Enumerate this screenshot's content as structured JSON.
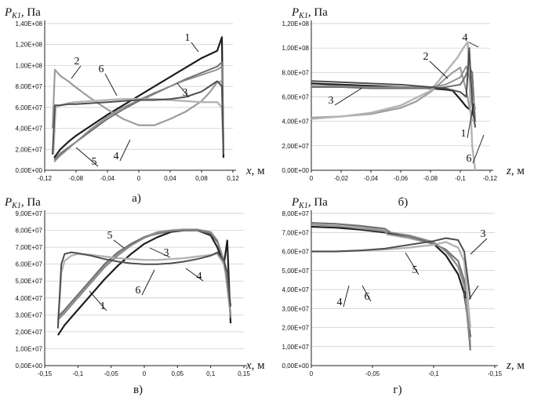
{
  "figure": {
    "ylabel_symbol": "P",
    "ylabel_sub": "K1",
    "ylabel_unit": ", Па",
    "xunit": ", м"
  },
  "colors": {
    "1": "#1e1e1e",
    "2": "#9c9c9c",
    "3": "#707070",
    "4": "#b4b4b4",
    "5": "#8a8a8a",
    "6": "#4e4e4e"
  },
  "chart_data": [
    {
      "type": "line",
      "panel_label": "а)",
      "xaxis_letter": "x",
      "xlim": [
        -0.12,
        0.12
      ],
      "ylim": [
        0,
        140000000
      ],
      "xticks": [
        -0.12,
        -0.08,
        -0.04,
        0,
        0.04,
        0.08,
        0.12
      ],
      "xtick_labels": [
        "-0,12",
        "-0,08",
        "-0,04",
        "0",
        "0,04",
        "0,08",
        "0,12"
      ],
      "yticks": [
        0,
        20000000,
        40000000,
        60000000,
        80000000,
        100000000,
        120000000,
        140000000
      ],
      "ytick_labels": [
        "0,00E+00",
        "2,00E+07",
        "4,00E+07",
        "6,00E+07",
        "8,00E+07",
        "1,00E+08",
        "1,20E+08",
        "1,40E+08"
      ],
      "series": [
        {
          "name": "1",
          "x": [
            -0.108,
            -0.1,
            -0.09,
            -0.08,
            -0.06,
            -0.04,
            -0.02,
            0,
            0.02,
            0.04,
            0.06,
            0.08,
            0.1,
            0.106,
            0.108
          ],
          "y": [
            12000000,
            20000000,
            27000000,
            33000000,
            43000000,
            53000000,
            62000000,
            71000000,
            80000000,
            89000000,
            98000000,
            107000000,
            114000000,
            127000000,
            12000000
          ]
        },
        {
          "name": "2",
          "x": [
            -0.11,
            -0.107,
            -0.1,
            -0.09,
            -0.08,
            -0.06,
            -0.04,
            -0.02,
            0,
            0.02,
            0.04,
            0.06,
            0.08,
            0.09,
            0.1,
            0.106,
            0.108
          ],
          "y": [
            40000000,
            96000000,
            90000000,
            85000000,
            79000000,
            68000000,
            58000000,
            49000000,
            43000000,
            43000000,
            49000000,
            56000000,
            66000000,
            74000000,
            84000000,
            85000000,
            20000000
          ]
        },
        {
          "name": "3",
          "x": [
            -0.108,
            -0.1,
            -0.08,
            -0.06,
            -0.04,
            -0.02,
            0,
            0.02,
            0.04,
            0.06,
            0.08,
            0.1,
            0.106,
            0.108
          ],
          "y": [
            10000000,
            16000000,
            27000000,
            38000000,
            49000000,
            58000000,
            66000000,
            73000000,
            80000000,
            87000000,
            93000000,
            99000000,
            103000000,
            15000000
          ]
        },
        {
          "name": "4",
          "x": [
            -0.109,
            -0.106,
            -0.1,
            -0.09,
            -0.08,
            -0.06,
            -0.04,
            -0.02,
            0,
            0.02,
            0.04,
            0.06,
            0.08,
            0.1,
            0.106,
            0.108
          ],
          "y": [
            15000000,
            60000000,
            62000000,
            64000000,
            65000000,
            66000000,
            67000000,
            68000000,
            68000000,
            68000000,
            67000000,
            66000000,
            65000000,
            65000000,
            60000000,
            18000000
          ]
        },
        {
          "name": "5",
          "x": [
            -0.108,
            -0.1,
            -0.08,
            -0.06,
            -0.04,
            -0.02,
            0,
            0.02,
            0.04,
            0.06,
            0.08,
            0.1,
            0.106,
            0.108
          ],
          "y": [
            8000000,
            14000000,
            27000000,
            40000000,
            51000000,
            60000000,
            67000000,
            74000000,
            80000000,
            86000000,
            91000000,
            96000000,
            99000000,
            15000000
          ]
        },
        {
          "name": "6",
          "x": [
            -0.11,
            -0.107,
            -0.1,
            -0.09,
            -0.08,
            -0.06,
            -0.04,
            -0.02,
            0,
            0.02,
            0.04,
            0.06,
            0.08,
            0.1,
            0.106,
            0.108
          ],
          "y": [
            15000000,
            62000000,
            62000000,
            63000000,
            63000000,
            64000000,
            65000000,
            66000000,
            67000000,
            67000000,
            68000000,
            70000000,
            75000000,
            85000000,
            80000000,
            15000000
          ]
        }
      ],
      "curve_labels": [
        "1",
        "2",
        "3",
        "4",
        "5",
        "6"
      ]
    },
    {
      "type": "line",
      "panel_label": "б)",
      "xaxis_letter": "z",
      "xlim": [
        0,
        -0.12
      ],
      "ylim": [
        0,
        120000000
      ],
      "xticks": [
        0,
        -0.02,
        -0.04,
        -0.06,
        -0.08,
        -0.1,
        -0.12
      ],
      "xtick_labels": [
        "0",
        "-0,02",
        "-0,04",
        "-0,06",
        "-0,08",
        "-0,1",
        "-0,12"
      ],
      "yticks": [
        0,
        20000000,
        40000000,
        60000000,
        80000000,
        100000000,
        120000000
      ],
      "ytick_labels": [
        "0,00E+00",
        "2,00E+07",
        "4,00E+07",
        "6,00E+07",
        "8,00E+07",
        "1,00E+08",
        "1,20E+08"
      ],
      "series": [
        {
          "name": "1",
          "x": [
            0,
            -0.02,
            -0.04,
            -0.06,
            -0.08,
            -0.09,
            -0.095,
            -0.1,
            -0.104,
            -0.108,
            -0.11
          ],
          "y": [
            71000000,
            70000000,
            69000000,
            68000000,
            67000000,
            66000000,
            65000000,
            58000000,
            52000000,
            48000000,
            40000000
          ]
        },
        {
          "name": "2",
          "x": [
            0,
            -0.02,
            -0.04,
            -0.06,
            -0.07,
            -0.08,
            -0.09,
            -0.095,
            -0.1,
            -0.104,
            -0.108
          ],
          "y": [
            43000000,
            44000000,
            46000000,
            51000000,
            56000000,
            64000000,
            75000000,
            80000000,
            84000000,
            65000000,
            40000000
          ]
        },
        {
          "name": "3",
          "x": [
            0,
            -0.02,
            -0.04,
            -0.06,
            -0.08,
            -0.09,
            -0.1,
            -0.103,
            -0.106,
            -0.108,
            -0.11
          ],
          "y": [
            68000000,
            68000000,
            67000000,
            67000000,
            67000000,
            68000000,
            70000000,
            76000000,
            84000000,
            80000000,
            40000000
          ]
        },
        {
          "name": "4",
          "x": [
            0,
            -0.02,
            -0.04,
            -0.06,
            -0.08,
            -0.09,
            -0.098,
            -0.102,
            -0.105,
            -0.108,
            -0.11
          ],
          "y": [
            42000000,
            44000000,
            47000000,
            53000000,
            65000000,
            80000000,
            92000000,
            100000000,
            105000000,
            20000000,
            0
          ]
        },
        {
          "name": "5",
          "x": [
            0,
            -0.02,
            -0.04,
            -0.06,
            -0.08,
            -0.09,
            -0.1,
            -0.104,
            -0.107,
            -0.11
          ],
          "y": [
            69000000,
            69000000,
            68000000,
            68000000,
            68000000,
            70000000,
            76000000,
            85000000,
            72000000,
            50000000
          ]
        },
        {
          "name": "6",
          "x": [
            0,
            -0.02,
            -0.04,
            -0.06,
            -0.08,
            -0.09,
            -0.1,
            -0.104,
            -0.106,
            -0.108,
            -0.11
          ],
          "y": [
            73000000,
            72000000,
            71000000,
            70000000,
            68000000,
            67000000,
            64000000,
            60000000,
            100000000,
            55000000,
            35000000
          ]
        }
      ],
      "curve_labels": [
        "1",
        "2",
        "3",
        "4",
        "6"
      ]
    },
    {
      "type": "line",
      "panel_label": "в)",
      "xaxis_letter": "x",
      "xlim": [
        -0.15,
        0.15
      ],
      "ylim": [
        0,
        90000000
      ],
      "xticks": [
        -0.15,
        -0.1,
        -0.05,
        0,
        0.05,
        0.1,
        0.15
      ],
      "xtick_labels": [
        "-0,15",
        "-0,1",
        "-0,05",
        "0",
        "0,05",
        "0,1",
        "0,15"
      ],
      "yticks": [
        0,
        10000000,
        20000000,
        30000000,
        40000000,
        50000000,
        60000000,
        70000000,
        80000000,
        90000000
      ],
      "ytick_labels": [
        "0,00E+00",
        "1,00E+07",
        "2,00E+07",
        "3,00E+07",
        "4,00E+07",
        "5,00E+07",
        "6,00E+07",
        "7,00E+07",
        "8,00E+07",
        "9,00E+07"
      ],
      "series": [
        {
          "name": "1",
          "x": [
            -0.13,
            -0.12,
            -0.1,
            -0.08,
            -0.06,
            -0.04,
            -0.02,
            0,
            0.02,
            0.04,
            0.06,
            0.08,
            0.1,
            0.11,
            0.12,
            0.125,
            0.13
          ],
          "y": [
            18000000,
            24000000,
            33000000,
            42000000,
            51000000,
            59000000,
            66000000,
            72000000,
            76000000,
            79000000,
            80000000,
            80000000,
            77000000,
            70000000,
            60000000,
            74000000,
            25000000
          ]
        },
        {
          "name": "2",
          "x": [
            -0.13,
            -0.12,
            -0.1,
            -0.08,
            -0.06,
            -0.04,
            -0.02,
            0,
            0.02,
            0.04,
            0.06,
            0.08,
            0.1,
            0.11,
            0.12,
            0.125,
            0.13
          ],
          "y": [
            28000000,
            32000000,
            41000000,
            50000000,
            59000000,
            66000000,
            72000000,
            76000000,
            79000000,
            80000000,
            80500000,
            80500000,
            79000000,
            74000000,
            62000000,
            55000000,
            28000000
          ]
        },
        {
          "name": "3",
          "x": [
            -0.13,
            -0.12,
            -0.1,
            -0.08,
            -0.06,
            -0.04,
            -0.02,
            0,
            0.02,
            0.04,
            0.06,
            0.08,
            0.1,
            0.11,
            0.12,
            0.125,
            0.13
          ],
          "y": [
            29000000,
            33000000,
            42000000,
            51000000,
            60000000,
            67000000,
            72000000,
            76000000,
            78000000,
            79500000,
            80000000,
            80000000,
            78000000,
            73000000,
            62000000,
            50000000,
            28000000
          ]
        },
        {
          "name": "4",
          "x": [
            -0.13,
            -0.125,
            -0.12,
            -0.11,
            -0.1,
            -0.08,
            -0.06,
            -0.04,
            -0.02,
            0,
            0.02,
            0.04,
            0.06,
            0.08,
            0.1,
            0.11,
            0.12,
            0.125,
            0.13
          ],
          "y": [
            25000000,
            55000000,
            62000000,
            65000000,
            66000000,
            65500000,
            64500000,
            63500000,
            63000000,
            62500000,
            62500000,
            63000000,
            63500000,
            64500000,
            65500000,
            66000000,
            60000000,
            50000000,
            30000000
          ]
        },
        {
          "name": "5",
          "x": [
            -0.13,
            -0.12,
            -0.1,
            -0.08,
            -0.06,
            -0.04,
            -0.02,
            0,
            0.02,
            0.04,
            0.06,
            0.08,
            0.1,
            0.11,
            0.12,
            0.13
          ],
          "y": [
            27000000,
            31000000,
            40000000,
            49000000,
            58000000,
            65000000,
            71000000,
            75500000,
            78500000,
            80000000,
            80500000,
            80500000,
            79000000,
            74000000,
            62000000,
            30000000
          ]
        },
        {
          "name": "6",
          "x": [
            -0.13,
            -0.125,
            -0.12,
            -0.11,
            -0.1,
            -0.08,
            -0.06,
            -0.04,
            -0.02,
            0,
            0.02,
            0.04,
            0.06,
            0.08,
            0.1,
            0.11,
            0.12,
            0.125,
            0.13
          ],
          "y": [
            22000000,
            60000000,
            66000000,
            67000000,
            66500000,
            65000000,
            63000000,
            61500000,
            60500000,
            60000000,
            60000000,
            60500000,
            61500000,
            63000000,
            65000000,
            67000000,
            62000000,
            55000000,
            35000000
          ]
        }
      ],
      "curve_labels": [
        "1",
        "3",
        "4",
        "5",
        "6"
      ]
    },
    {
      "type": "line",
      "panel_label": "г)",
      "xaxis_letter": "z",
      "xlim": [
        0,
        -0.15
      ],
      "ylim": [
        0,
        80000000
      ],
      "xticks": [
        0,
        -0.05,
        -0.1,
        -0.15
      ],
      "xtick_labels": [
        "0",
        "-0,05",
        "-0,1",
        "-0,15"
      ],
      "yticks": [
        0,
        10000000,
        20000000,
        30000000,
        40000000,
        50000000,
        60000000,
        70000000,
        80000000
      ],
      "ytick_labels": [
        "0,00E+00",
        "1,00E+07",
        "2,00E+07",
        "3,00E+07",
        "4,00E+07",
        "5,00E+07",
        "6,00E+07",
        "7,00E+07",
        "8,00E+07"
      ],
      "series": [
        {
          "name": "1",
          "x": [
            0,
            -0.02,
            -0.04,
            -0.06,
            -0.08,
            -0.1,
            -0.11,
            -0.12,
            -0.125,
            -0.13
          ],
          "y": [
            73000000,
            72500000,
            71500000,
            70000000,
            68000000,
            64000000,
            58000000,
            48000000,
            38000000,
            15000000
          ]
        },
        {
          "name": "2",
          "x": [
            0,
            -0.02,
            -0.04,
            -0.06,
            -0.062,
            -0.08,
            -0.1,
            -0.11,
            -0.12,
            -0.125,
            -0.13
          ],
          "y": [
            75000000,
            74500000,
            73000000,
            71000000,
            69000000,
            67000000,
            64000000,
            61000000,
            52000000,
            42000000,
            10000000
          ]
        },
        {
          "name": "3",
          "x": [
            0,
            -0.02,
            -0.04,
            -0.06,
            -0.065,
            -0.08,
            -0.1,
            -0.11,
            -0.12,
            -0.125,
            -0.13
          ],
          "y": [
            75000000,
            74500000,
            73500000,
            72000000,
            70000000,
            68000000,
            64000000,
            61000000,
            55000000,
            45000000,
            8000000
          ]
        },
        {
          "name": "4",
          "x": [
            0,
            -0.02,
            -0.04,
            -0.06,
            -0.08,
            -0.1,
            -0.11,
            -0.12,
            -0.125,
            -0.13
          ],
          "y": [
            60000000,
            60000000,
            60500000,
            61000000,
            62000000,
            63500000,
            65000000,
            62000000,
            55000000,
            20000000
          ]
        },
        {
          "name": "5",
          "x": [
            0,
            -0.02,
            -0.04,
            -0.06,
            -0.08,
            -0.1,
            -0.11,
            -0.12,
            -0.125,
            -0.13
          ],
          "y": [
            74000000,
            73500000,
            72000000,
            70500000,
            68500000,
            65000000,
            60000000,
            52000000,
            42000000,
            12000000
          ]
        },
        {
          "name": "6",
          "x": [
            0,
            -0.02,
            -0.04,
            -0.06,
            -0.08,
            -0.1,
            -0.11,
            -0.12,
            -0.125,
            -0.13
          ],
          "y": [
            60000000,
            60000000,
            60500000,
            61500000,
            63500000,
            65500000,
            67000000,
            66000000,
            60000000,
            35000000
          ]
        }
      ],
      "curve_labels": [
        "1",
        "3",
        "4",
        "5",
        "6"
      ]
    }
  ]
}
